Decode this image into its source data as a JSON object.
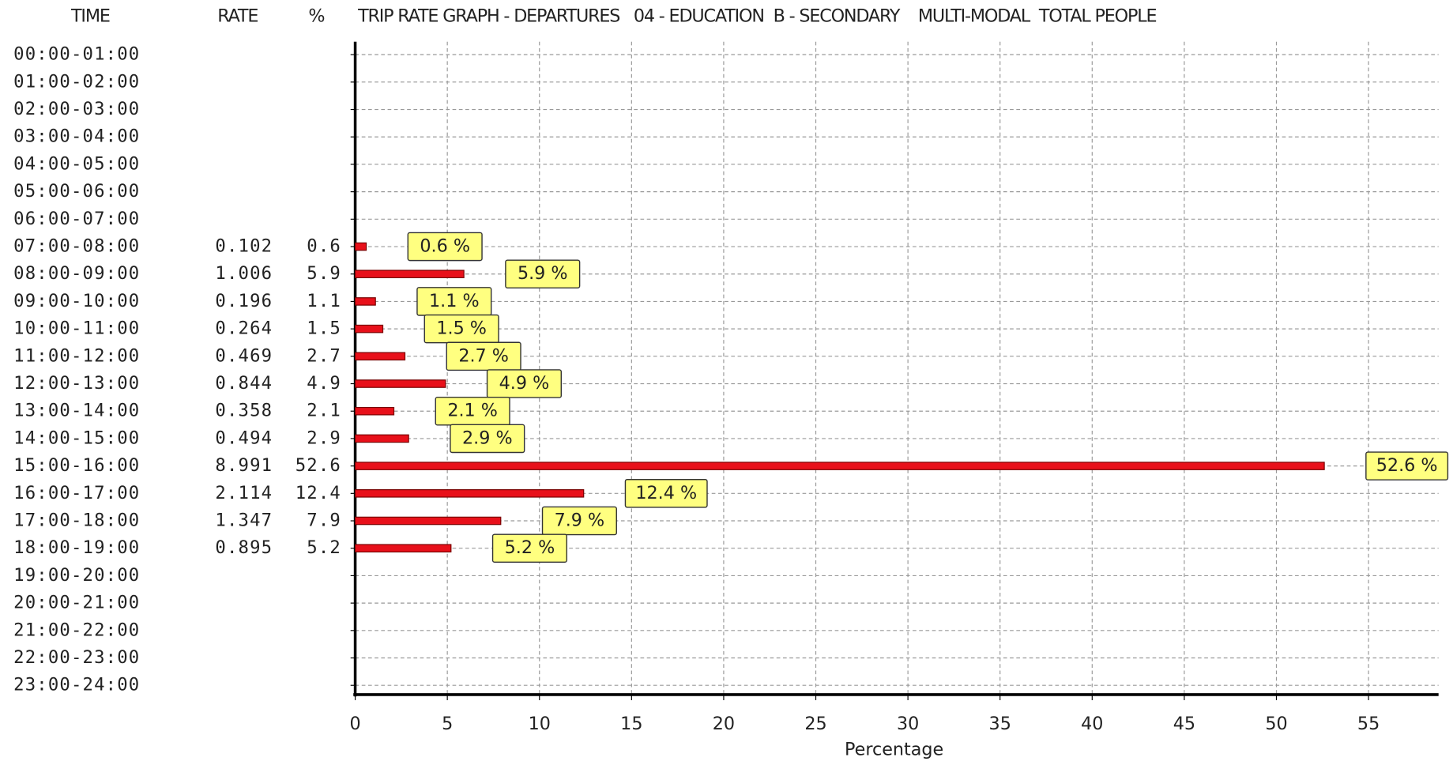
{
  "chart_data": {
    "type": "bar",
    "orientation": "horizontal",
    "title": "TRIP RATE GRAPH - DEPARTURES   04 - EDUCATION  B - SECONDARY    MULTI-MODAL  TOTAL PEOPLE",
    "column_headers": [
      "TIME",
      "RATE",
      "%"
    ],
    "xlabel": "Percentage",
    "categories": [
      "00:00-01:00",
      "01:00-02:00",
      "02:00-03:00",
      "03:00-04:00",
      "04:00-05:00",
      "05:00-06:00",
      "06:00-07:00",
      "07:00-08:00",
      "08:00-09:00",
      "09:00-10:00",
      "10:00-11:00",
      "11:00-12:00",
      "12:00-13:00",
      "13:00-14:00",
      "14:00-15:00",
      "15:00-16:00",
      "16:00-17:00",
      "17:00-18:00",
      "18:00-19:00",
      "19:00-20:00",
      "20:00-21:00",
      "21:00-22:00",
      "22:00-23:00",
      "23:00-24:00"
    ],
    "rates": [
      null,
      null,
      null,
      null,
      null,
      null,
      null,
      0.102,
      1.006,
      0.196,
      0.264,
      0.469,
      0.844,
      0.358,
      0.494,
      8.991,
      2.114,
      1.347,
      0.895,
      null,
      null,
      null,
      null,
      null
    ],
    "values": [
      null,
      null,
      null,
      null,
      null,
      null,
      null,
      0.6,
      5.9,
      1.1,
      1.5,
      2.7,
      4.9,
      2.1,
      2.9,
      52.6,
      12.4,
      7.9,
      5.2,
      null,
      null,
      null,
      null,
      null
    ],
    "value_labels": [
      null,
      null,
      null,
      null,
      null,
      null,
      null,
      "0.6 %",
      "5.9 %",
      "1.1 %",
      "1.5 %",
      "2.7 %",
      "4.9 %",
      "2.1 %",
      "2.9 %",
      "52.6 %",
      "12.4 %",
      "7.9 %",
      "5.2 %",
      null,
      null,
      null,
      null,
      null
    ],
    "color": "#e8101a",
    "label_color": "#ffff80",
    "xlim": [
      0,
      58.8
    ],
    "xticks": [
      0,
      5,
      10,
      15,
      20,
      25,
      30,
      35,
      40,
      45,
      50,
      55
    ],
    "grid": true
  }
}
